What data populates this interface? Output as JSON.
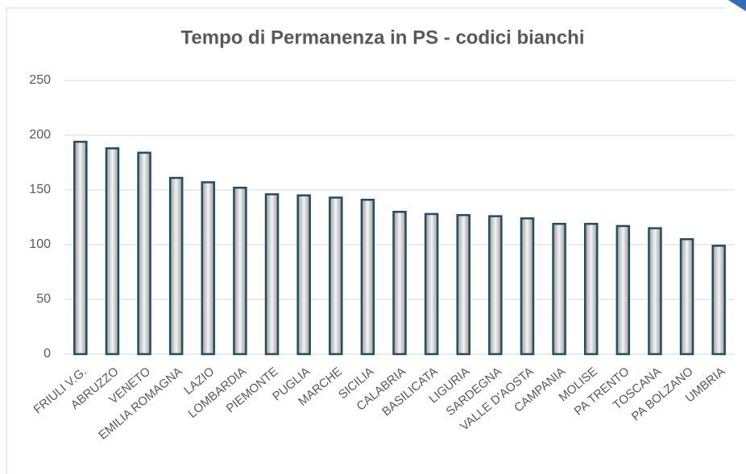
{
  "chart_data": {
    "type": "bar",
    "title": "Tempo di Permanenza in PS - codici bianchi",
    "categories": [
      "FRIULI V.G.",
      "ABRUZZO",
      "VENETO",
      "EMILIA ROMAGNA",
      "LAZIO",
      "LOMBARDIA",
      "PIEMONTE",
      "PUGLIA",
      "MARCHE",
      "SICILIA",
      "CALABRIA",
      "BASILICATA",
      "LIGURIA",
      "SARDEGNA",
      "VALLE D'AOSTA",
      "CAMPANIA",
      "MOLISE",
      "PA TRENTO",
      "TOSCANA",
      "PA BOLZANO",
      "UMBRIA"
    ],
    "values": [
      194,
      188,
      184,
      161,
      157,
      152,
      146,
      145,
      143,
      141,
      130,
      128,
      127,
      126,
      124,
      119,
      119,
      117,
      115,
      105,
      99
    ],
    "color": "#1f4e5f",
    "ylim": [
      0,
      250
    ],
    "yticks": [
      0,
      50,
      100,
      150,
      200,
      250
    ],
    "grid": true
  }
}
